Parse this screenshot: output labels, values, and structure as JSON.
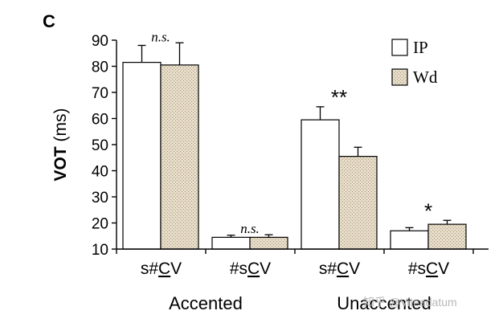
{
  "panel_label": "C",
  "chart_data": {
    "type": "bar",
    "title": "",
    "ylabel": {
      "bold": "VOT",
      "rest": " (ms)"
    },
    "ylim": [
      10,
      90
    ],
    "yticks": [
      10,
      20,
      30,
      40,
      50,
      60,
      70,
      80,
      90
    ],
    "groups": [
      {
        "label": "Accented",
        "categories": [
          "s#CV",
          "#sCV"
        ]
      },
      {
        "label": "Unaccented",
        "categories": [
          "s#CV",
          "#sCV"
        ]
      }
    ],
    "categories": [
      "s#CV",
      "#sCV",
      "s#CV",
      "#sCV"
    ],
    "series": [
      {
        "name": "IP",
        "values": [
          81.5,
          14.5,
          59.5,
          17
        ],
        "errors": [
          6.5,
          0.8,
          5,
          1.2
        ]
      },
      {
        "name": "Wd",
        "values": [
          80.5,
          14.5,
          45.5,
          19.5
        ],
        "errors": [
          8.5,
          1,
          3.5,
          1.5
        ]
      }
    ],
    "significance": [
      "n.s.",
      "n.s.",
      "**",
      "*"
    ],
    "legend": {
      "position": "top-right",
      "entries": [
        "IP",
        "Wd"
      ]
    },
    "colors": {
      "IP": "#ffffff",
      "Wd": "#e6dcc8",
      "Wd_dot": "#a89a80"
    }
  },
  "watermark": "知乎 @Viteadatum"
}
